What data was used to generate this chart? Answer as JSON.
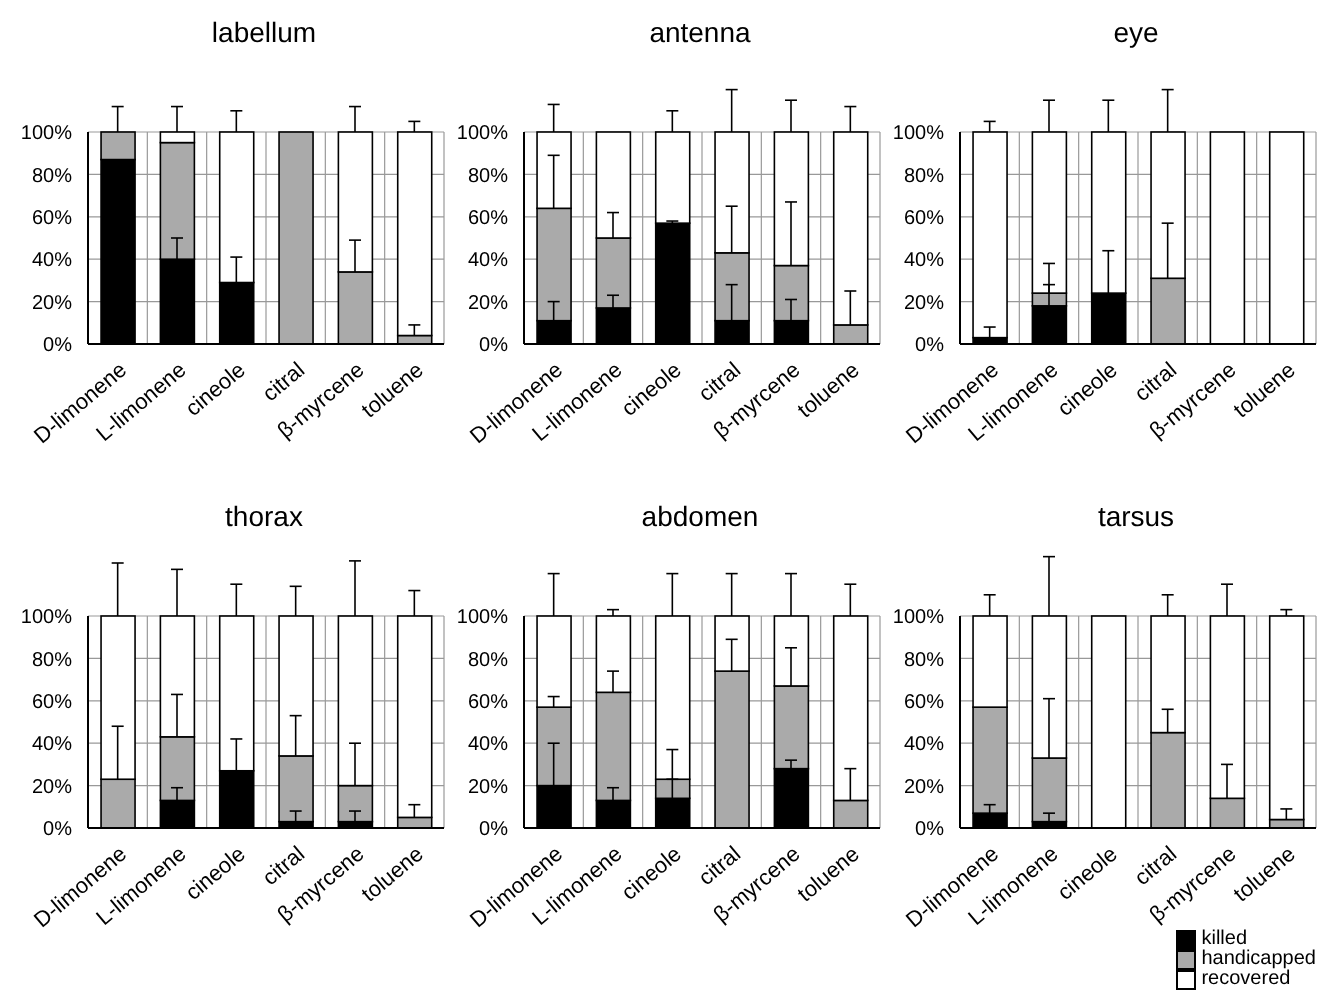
{
  "chart_data": [
    {
      "type": "bar",
      "title": "labellum",
      "stacked": true,
      "categories": [
        "D-limonene",
        "L-limonene",
        "cineole",
        "citral",
        "β-myrcene",
        "toluene"
      ],
      "ylim": [
        0,
        100
      ],
      "yticks": [
        {
          "value": 0,
          "label": "0%"
        },
        {
          "value": 20,
          "label": "20%"
        },
        {
          "value": 40,
          "label": "40%"
        },
        {
          "value": 60,
          "label": "60%"
        },
        {
          "value": 80,
          "label": "80%"
        },
        {
          "value": 100,
          "label": "100%"
        }
      ],
      "grid": true,
      "series": [
        {
          "color": "#000000",
          "values": [
            87,
            40,
            29,
            0,
            0,
            0
          ],
          "errors": [
            null,
            [
              40,
              50
            ],
            [
              29,
              41
            ],
            null,
            null,
            null
          ]
        },
        {
          "color": "#aaaaaa",
          "values": [
            13,
            55,
            0,
            100,
            34,
            4
          ],
          "errors": [
            [
              100,
              112
            ],
            null,
            null,
            null,
            [
              34,
              49
            ],
            [
              4,
              9
            ]
          ]
        },
        {
          "color": "#ffffff",
          "values": [
            0,
            5,
            71,
            0,
            66,
            96
          ],
          "errors": [
            null,
            [
              100,
              112
            ],
            [
              100,
              110
            ],
            null,
            [
              100,
              112
            ],
            [
              100,
              105
            ]
          ]
        }
      ]
    },
    {
      "type": "bar",
      "title": "antenna",
      "stacked": true,
      "categories": [
        "D-limonene",
        "L-limonene",
        "cineole",
        "citral",
        "β-myrcene",
        "toluene"
      ],
      "ylim": [
        0,
        100
      ],
      "yticks": [
        {
          "value": 0,
          "label": "0%"
        },
        {
          "value": 20,
          "label": "20%"
        },
        {
          "value": 40,
          "label": "40%"
        },
        {
          "value": 60,
          "label": "60%"
        },
        {
          "value": 80,
          "label": "80%"
        },
        {
          "value": 100,
          "label": "100%"
        }
      ],
      "grid": true,
      "series": [
        {
          "color": "#000000",
          "values": [
            11,
            17,
            57,
            11,
            11,
            0
          ],
          "errors": [
            [
              11,
              20
            ],
            [
              17,
              23
            ],
            [
              57,
              58
            ],
            [
              11,
              28
            ],
            [
              11,
              21
            ],
            null
          ]
        },
        {
          "color": "#aaaaaa",
          "values": [
            53,
            33,
            0,
            32,
            26,
            9
          ],
          "errors": [
            [
              64,
              89
            ],
            [
              50,
              62
            ],
            null,
            [
              43,
              65
            ],
            [
              37,
              67
            ],
            [
              9,
              25
            ]
          ]
        },
        {
          "color": "#ffffff",
          "values": [
            36,
            50,
            43,
            57,
            63,
            91
          ],
          "errors": [
            [
              100,
              113
            ],
            null,
            [
              100,
              110
            ],
            [
              100,
              120
            ],
            [
              100,
              115
            ],
            [
              100,
              112
            ]
          ]
        }
      ]
    },
    {
      "type": "bar",
      "title": "eye",
      "stacked": true,
      "categories": [
        "D-limonene",
        "L-limonene",
        "cineole",
        "citral",
        "β-myrcene",
        "toluene"
      ],
      "ylim": [
        0,
        100
      ],
      "yticks": [
        {
          "value": 0,
          "label": "0%"
        },
        {
          "value": 20,
          "label": "20%"
        },
        {
          "value": 40,
          "label": "40%"
        },
        {
          "value": 60,
          "label": "60%"
        },
        {
          "value": 80,
          "label": "80%"
        },
        {
          "value": 100,
          "label": "100%"
        }
      ],
      "grid": true,
      "series": [
        {
          "color": "#000000",
          "values": [
            3,
            18,
            24,
            0,
            0,
            0
          ],
          "errors": [
            [
              3,
              8
            ],
            [
              18,
              28
            ],
            [
              24,
              44
            ],
            null,
            null,
            null
          ]
        },
        {
          "color": "#aaaaaa",
          "values": [
            0,
            6,
            0,
            31,
            0,
            0
          ],
          "errors": [
            null,
            [
              24,
              38
            ],
            null,
            [
              31,
              57
            ],
            null,
            null
          ]
        },
        {
          "color": "#ffffff",
          "values": [
            97,
            76,
            76,
            69,
            100,
            100
          ],
          "errors": [
            [
              100,
              105
            ],
            [
              100,
              115
            ],
            [
              100,
              115
            ],
            [
              100,
              120
            ],
            null,
            null
          ]
        }
      ]
    },
    {
      "type": "bar",
      "title": "thorax",
      "stacked": true,
      "categories": [
        "D-limonene",
        "L-limonene",
        "cineole",
        "citral",
        "β-myrcene",
        "toluene"
      ],
      "ylim": [
        0,
        100
      ],
      "yticks": [
        {
          "value": 0,
          "label": "0%"
        },
        {
          "value": 20,
          "label": "20%"
        },
        {
          "value": 40,
          "label": "40%"
        },
        {
          "value": 60,
          "label": "60%"
        },
        {
          "value": 80,
          "label": "80%"
        },
        {
          "value": 100,
          "label": "100%"
        }
      ],
      "grid": true,
      "series": [
        {
          "color": "#000000",
          "values": [
            0,
            13,
            27,
            3,
            3,
            0
          ],
          "errors": [
            null,
            [
              13,
              19
            ],
            [
              27,
              42
            ],
            [
              3,
              8
            ],
            [
              3,
              8
            ],
            null
          ]
        },
        {
          "color": "#aaaaaa",
          "values": [
            23,
            30,
            0,
            31,
            17,
            5
          ],
          "errors": [
            [
              23,
              48
            ],
            [
              43,
              63
            ],
            null,
            [
              34,
              53
            ],
            [
              20,
              40
            ],
            [
              5,
              11
            ]
          ]
        },
        {
          "color": "#ffffff",
          "values": [
            77,
            57,
            73,
            66,
            80,
            95
          ],
          "errors": [
            [
              100,
              125
            ],
            [
              100,
              122
            ],
            [
              100,
              115
            ],
            [
              100,
              114
            ],
            [
              100,
              126
            ],
            [
              100,
              112
            ]
          ]
        }
      ]
    },
    {
      "type": "bar",
      "title": "abdomen",
      "stacked": true,
      "categories": [
        "D-limonene",
        "L-limonene",
        "cineole",
        "citral",
        "β-myrcene",
        "toluene"
      ],
      "ylim": [
        0,
        100
      ],
      "yticks": [
        {
          "value": 0,
          "label": "0%"
        },
        {
          "value": 20,
          "label": "20%"
        },
        {
          "value": 40,
          "label": "40%"
        },
        {
          "value": 60,
          "label": "60%"
        },
        {
          "value": 80,
          "label": "80%"
        },
        {
          "value": 100,
          "label": "100%"
        }
      ],
      "grid": true,
      "series": [
        {
          "color": "#000000",
          "values": [
            20,
            13,
            14,
            0,
            28,
            0
          ],
          "errors": [
            [
              20,
              40
            ],
            [
              13,
              19
            ],
            [
              14,
              23
            ],
            null,
            [
              28,
              32
            ],
            null
          ]
        },
        {
          "color": "#aaaaaa",
          "values": [
            37,
            51,
            9,
            74,
            39,
            13
          ],
          "errors": [
            [
              57,
              62
            ],
            [
              64,
              74
            ],
            [
              23,
              37
            ],
            [
              74,
              89
            ],
            [
              67,
              85
            ],
            [
              13,
              28
            ]
          ]
        },
        {
          "color": "#ffffff",
          "values": [
            43,
            36,
            77,
            26,
            33,
            87
          ],
          "errors": [
            [
              100,
              120
            ],
            [
              100,
              103
            ],
            [
              100,
              120
            ],
            [
              100,
              120
            ],
            [
              100,
              120
            ],
            [
              100,
              115
            ]
          ]
        }
      ]
    },
    {
      "type": "bar",
      "title": "tarsus",
      "stacked": true,
      "categories": [
        "D-limonene",
        "L-limonene",
        "cineole",
        "citral",
        "β-myrcene",
        "toluene"
      ],
      "ylim": [
        0,
        100
      ],
      "yticks": [
        {
          "value": 0,
          "label": "0%"
        },
        {
          "value": 20,
          "label": "20%"
        },
        {
          "value": 40,
          "label": "40%"
        },
        {
          "value": 60,
          "label": "60%"
        },
        {
          "value": 80,
          "label": "80%"
        },
        {
          "value": 100,
          "label": "100%"
        }
      ],
      "grid": true,
      "legend": "bottom right",
      "series": [
        {
          "name": "killed",
          "color": "#000000",
          "values": [
            7,
            3,
            0,
            0,
            0,
            0
          ],
          "errors": [
            [
              7,
              11
            ],
            [
              3,
              7
            ],
            null,
            null,
            null,
            null
          ]
        },
        {
          "name": "handicapped",
          "color": "#aaaaaa",
          "values": [
            50,
            30,
            0,
            45,
            14,
            4
          ],
          "errors": [
            null,
            [
              33,
              61
            ],
            null,
            [
              45,
              56
            ],
            [
              14,
              30
            ],
            [
              4,
              9
            ]
          ]
        },
        {
          "name": "recovered",
          "color": "#ffffff",
          "values": [
            43,
            67,
            100,
            55,
            86,
            96
          ],
          "errors": [
            [
              100,
              110
            ],
            [
              100,
              128
            ],
            null,
            [
              100,
              110
            ],
            [
              100,
              115
            ],
            [
              100,
              103
            ]
          ]
        }
      ]
    }
  ]
}
